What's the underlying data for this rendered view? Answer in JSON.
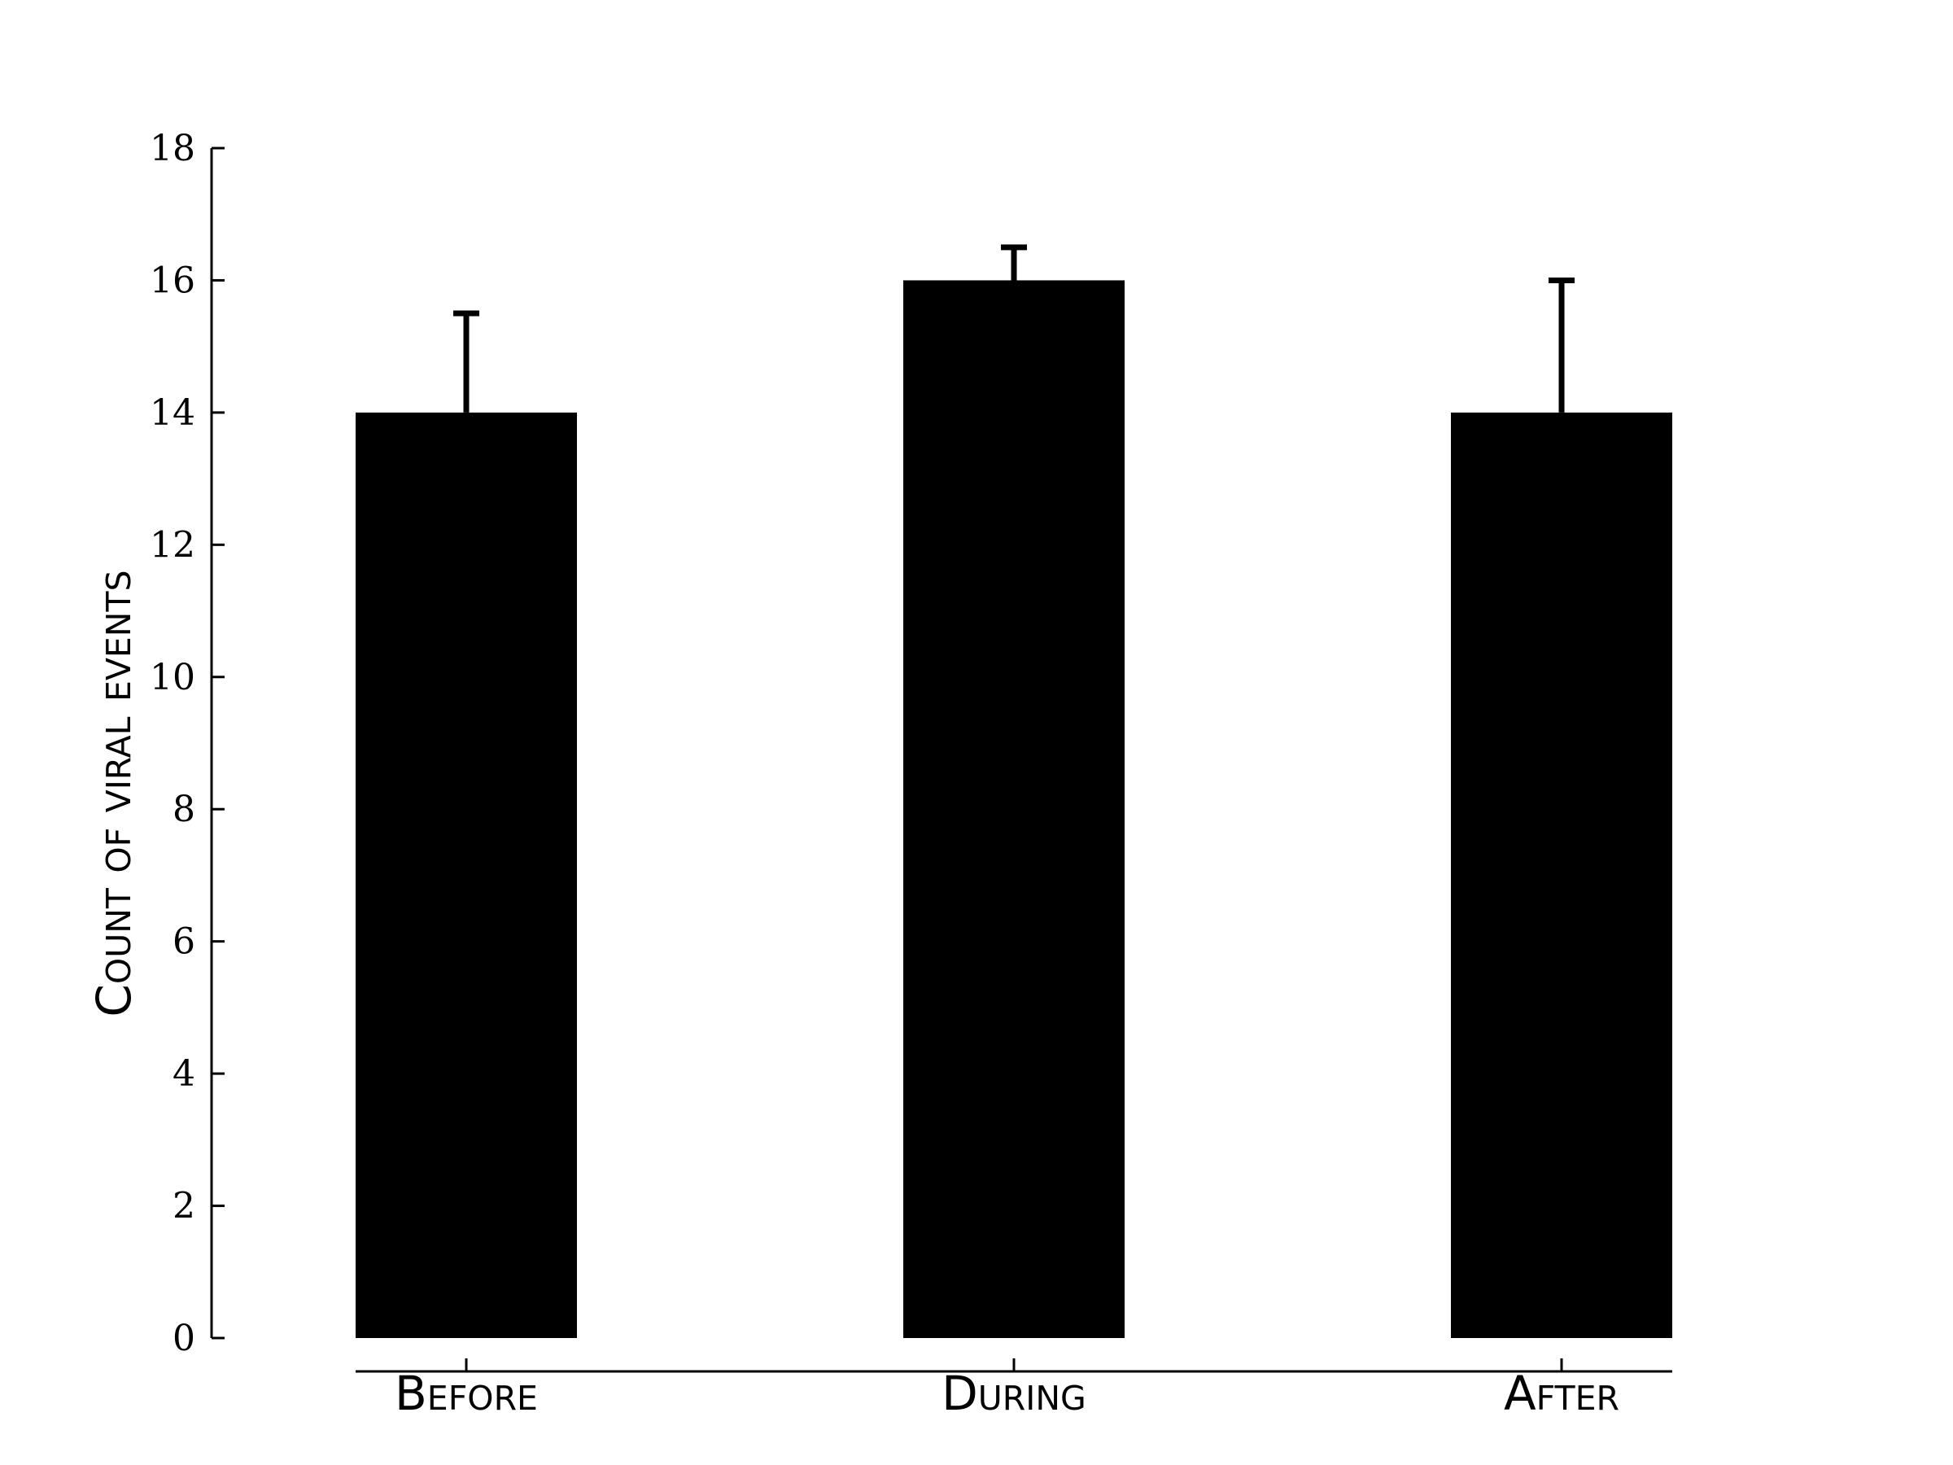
{
  "chart_data": {
    "type": "bar",
    "title": "",
    "xlabel": "",
    "ylabel": "Count of viral events",
    "categories": [
      "Before",
      "During",
      "After"
    ],
    "values": [
      14,
      16,
      14
    ],
    "error_upper": [
      1.5,
      0.5,
      2
    ],
    "ylim": [
      0,
      18
    ],
    "yticks": [
      0,
      2,
      4,
      6,
      8,
      10,
      12,
      14,
      16,
      18
    ],
    "ytick_labels": [
      "0",
      "2",
      "4",
      "6",
      "8",
      "10",
      "12",
      "14",
      "16",
      "18"
    ],
    "grid": false,
    "legend": "none",
    "bar_color": "#000000"
  }
}
